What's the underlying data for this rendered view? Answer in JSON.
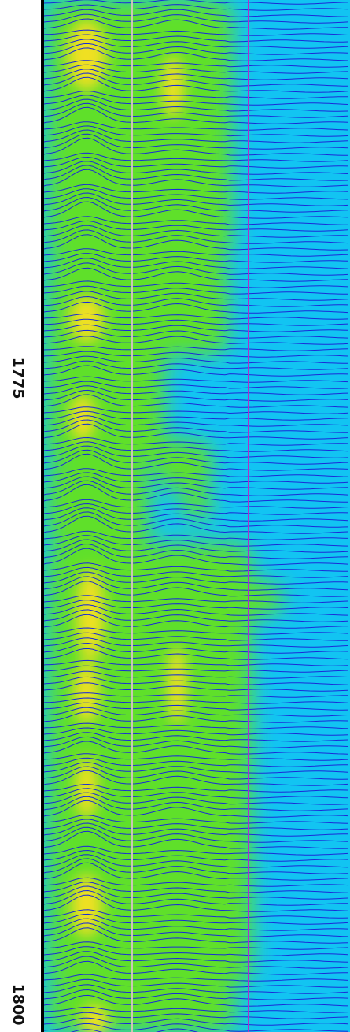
{
  "depth_labels": [
    "1775",
    "1800"
  ]
}
